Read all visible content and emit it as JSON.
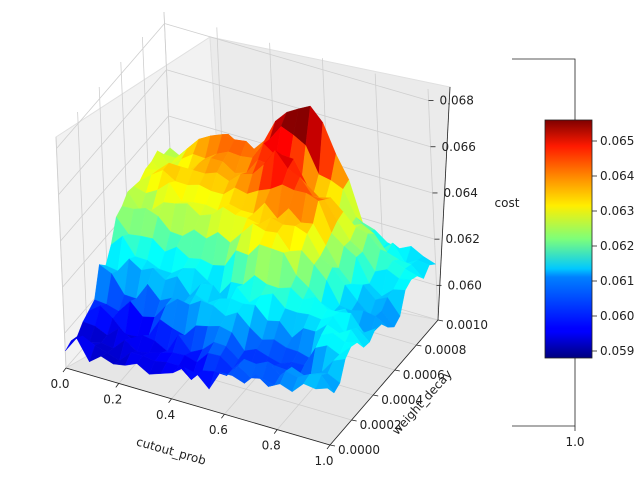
{
  "chart_data": {
    "type": "surface3d",
    "colormap": "jet",
    "x": {
      "label": "cutout_prob",
      "range": [
        0.0,
        1.0
      ],
      "ticks": [
        "0.0",
        "0.2",
        "0.4",
        "0.6",
        "0.8",
        "1.0"
      ]
    },
    "y": {
      "label": "weight_decay",
      "range": [
        0.0,
        0.001
      ],
      "ticks": [
        "0.0000",
        "0.0002",
        "0.0004",
        "0.0006",
        "0.0008",
        "0.0010"
      ]
    },
    "z": {
      "label": "cost",
      "range": [
        0.0585,
        0.0685
      ],
      "ticks": [
        "0.060",
        "0.062",
        "0.064",
        "0.066",
        "0.068"
      ]
    },
    "colorbar": {
      "range": [
        0.0588,
        0.0656
      ],
      "ticks": [
        "0.059",
        "0.060",
        "0.061",
        "0.062",
        "0.063",
        "0.064",
        "0.065"
      ],
      "extra_axis_tick": "1.0"
    },
    "surface_samples": [
      {
        "cutout_prob": 0.05,
        "weight_decay": 0.001,
        "cost": 0.0622
      },
      {
        "cutout_prob": 0.15,
        "weight_decay": 0.001,
        "cost": 0.0636
      },
      {
        "cutout_prob": 0.25,
        "weight_decay": 0.001,
        "cost": 0.064
      },
      {
        "cutout_prob": 0.55,
        "weight_decay": 0.001,
        "cost": 0.0668
      },
      {
        "cutout_prob": 0.55,
        "weight_decay": 0.0008,
        "cost": 0.0655
      },
      {
        "cutout_prob": 0.5,
        "weight_decay": 0.0006,
        "cost": 0.0632
      },
      {
        "cutout_prob": 0.6,
        "weight_decay": 0.0009,
        "cost": 0.062
      },
      {
        "cutout_prob": 0.8,
        "weight_decay": 0.001,
        "cost": 0.0616
      },
      {
        "cutout_prob": 0.95,
        "weight_decay": 0.001,
        "cost": 0.0608
      },
      {
        "cutout_prob": 0.95,
        "weight_decay": 0.0006,
        "cost": 0.0607
      },
      {
        "cutout_prob": 0.95,
        "weight_decay": 0.0003,
        "cost": 0.0612
      },
      {
        "cutout_prob": 0.4,
        "weight_decay": 0.0004,
        "cost": 0.0609
      },
      {
        "cutout_prob": 0.2,
        "weight_decay": 0.0001,
        "cost": 0.0593
      },
      {
        "cutout_prob": 0.45,
        "weight_decay": 0.0,
        "cost": 0.0596
      },
      {
        "cutout_prob": 0.75,
        "weight_decay": 0.0002,
        "cost": 0.0601
      }
    ]
  }
}
